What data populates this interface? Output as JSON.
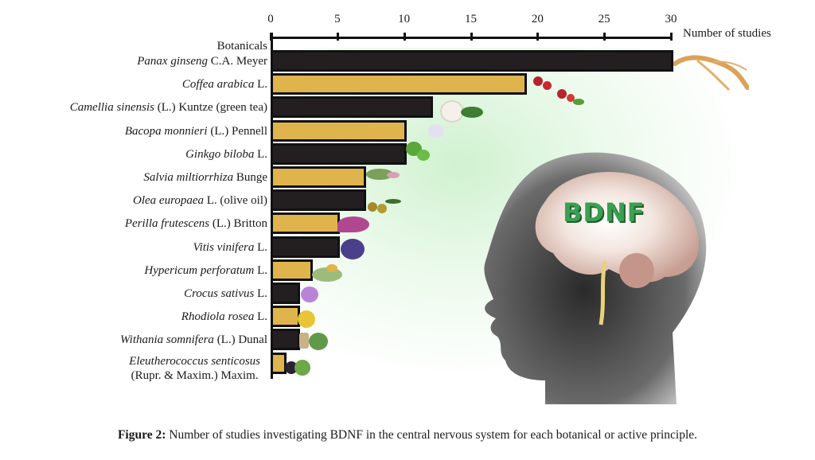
{
  "chart_data": {
    "type": "bar",
    "orientation": "horizontal",
    "title": "",
    "xlabel": "Number of studies",
    "ylabel": "Botanicals",
    "xlim": [
      0,
      30
    ],
    "xticks": [
      0,
      5,
      10,
      15,
      20,
      25,
      30
    ],
    "grid": false,
    "legend": null,
    "categories": [
      "Panax ginseng C.A. Meyer",
      "Coffea arabica L.",
      "Camellia sinensis (L.) Kuntze (green tea)",
      "Bacopa monnieri (L.) Pennell",
      "Ginkgo biloba L.",
      "Salvia miltiorrhiza Bunge",
      "Olea europaea L. (olive oil)",
      "Perilla frutescens (L.) Britton",
      "Vitis vinifera L.",
      "Hypericum perforatum L.",
      "Crocus sativus L.",
      "Rhodiola rosea L.",
      "Withania somnifera (L.) Dunal",
      "Eleutherococcus senticosus (Rupr. & Maxim.) Maxim."
    ],
    "values": [
      30,
      19,
      12,
      10,
      10,
      7,
      7,
      5,
      5,
      3,
      2,
      2,
      2,
      1
    ],
    "bar_colors": [
      "#231f20",
      "#e0b44c",
      "#231f20",
      "#e0b44c",
      "#231f20",
      "#e0b44c",
      "#231f20",
      "#e0b44c",
      "#231f20",
      "#e0b44c",
      "#231f20",
      "#e0b44c",
      "#231f20",
      "#e0b44c"
    ],
    "annotations": [
      "BDNF"
    ]
  },
  "axis": {
    "ticks": [
      "0",
      "5",
      "10",
      "15",
      "20",
      "25",
      "30"
    ],
    "x_title": "Number of studies",
    "y_title": "Botanicals"
  },
  "labels": [
    {
      "italic": "Panax ginseng",
      "rest": " C.A. Meyer"
    },
    {
      "italic": "Coffea arabica",
      "rest": " L."
    },
    {
      "italic": "Camellia sinensis",
      "rest": " (L.) Kuntze (green tea)"
    },
    {
      "italic": "Bacopa monnieri",
      "rest": " (L.) Pennell"
    },
    {
      "italic": "Ginkgo biloba",
      "rest": " L."
    },
    {
      "italic": "Salvia miltiorrhiza",
      "rest": " Bunge"
    },
    {
      "italic": "Olea europaea",
      "rest": " L. (olive oil)"
    },
    {
      "italic": "Perilla frutescens",
      "rest": " (L.) Britton"
    },
    {
      "italic": "Vitis vinifera",
      "rest": " L."
    },
    {
      "italic": "Hypericum perforatum",
      "rest": " L."
    },
    {
      "italic": "Crocus sativus",
      "rest": " L."
    },
    {
      "italic": "Rhodiola rosea",
      "rest": " L."
    },
    {
      "italic": "Withania somnifera",
      "rest": "  (L.) Dunal"
    },
    {
      "italic": "Eleutherococcus senticosus",
      "rest": "(Rupr. & Maxim.) Maxim."
    }
  ],
  "illustration": {
    "brain_text": "BDNF",
    "colors": {
      "brain_text": "#3aa052",
      "glow": "#bfe8bf"
    }
  },
  "caption": {
    "label": "Figure 2:",
    "text": " Number of studies investigating BDNF in the central nervous system for each botanical or active principle."
  }
}
